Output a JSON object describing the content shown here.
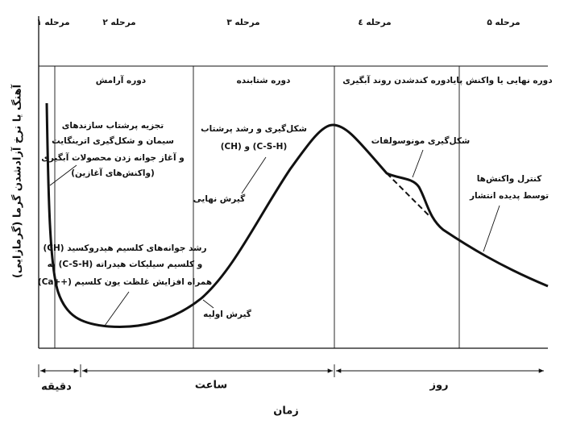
{
  "stages": [
    "مرحله ۱",
    "مرحله ۲",
    "مرحله ۳",
    "مرحله ٤",
    "مرحله ۵"
  ],
  "periods": [
    "دوره آرامش",
    "دوره شتابنده",
    "دوره کندشدن روند آبگیری",
    "دوره نهایی یا واکنش پایا"
  ],
  "annotations": {
    "initial_reactions": [
      "تجزیه پرشتاب سازندهای",
      "سیمان و شکل‌گیری اترینگایت",
      "و آغاز جوانه زدن محصولات آبگیری",
      "(واکنش‌های آغازین)"
    ],
    "nucleation": [
      "رشد جوانه‌های کلسیم هیدروکسید (CH)",
      "و کلسیم سیلیکات هیدراته (C-S-H) به",
      "همراه افزایش غلظت یون کلسیم (++Ca)"
    ],
    "rapid_growth": [
      "شکل‌گیری و رشد پرشتاب",
      "(CH) و (C-S-H)"
    ],
    "final_set": "گیرش نهایی",
    "initial_set": "گیرش اولیه",
    "monosulfate": "شکل‌گیری مونوسولفات",
    "diffusion": [
      "کنترل واکنش‌ها",
      "توسط پدیده انتشار"
    ]
  },
  "axis": {
    "y_title": "آهنگ یا نرخ آزادشدن گرما (گرمازایی)",
    "x_title": "زمان",
    "time_units": [
      "دقیقه",
      "ساعت",
      "روز"
    ]
  }
}
